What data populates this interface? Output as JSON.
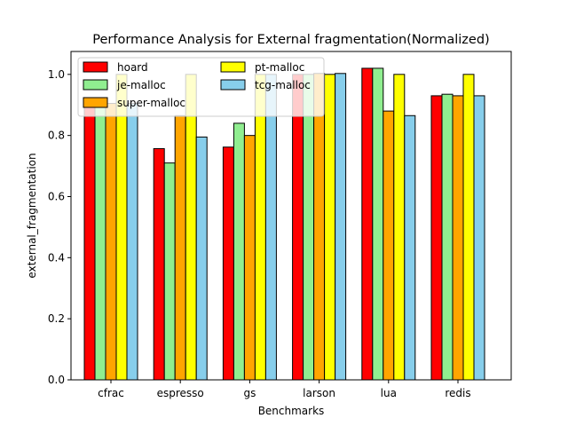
{
  "chart_data": {
    "type": "bar",
    "title": "Performance Analysis for External fragmentation(Normalized)",
    "xlabel": "Benchmarks",
    "ylabel": "external_fragmentation",
    "categories": [
      "cfrac",
      "espresso",
      "gs",
      "larson",
      "lua",
      "redis"
    ],
    "ylim": [
      0,
      1.075
    ],
    "yticks": [
      "0.0",
      "0.2",
      "0.4",
      "0.6",
      "0.8",
      "1.0"
    ],
    "legend_position": "upper-left",
    "legend_columns": 2,
    "series": [
      {
        "name": "hoard",
        "color": "#ff0000",
        "values": [
          0.9,
          0.757,
          0.762,
          1.0,
          1.02,
          0.93
        ]
      },
      {
        "name": "je-malloc",
        "color": "#90ee90",
        "values": [
          0.9,
          0.71,
          0.84,
          1.0,
          1.02,
          0.935
        ]
      },
      {
        "name": "super-malloc",
        "color": "#ffa500",
        "values": [
          0.905,
          0.865,
          0.8,
          1.003,
          0.88,
          0.93
        ]
      },
      {
        "name": "pt-malloc",
        "color": "#ffff00",
        "values": [
          1.0,
          1.0,
          1.0,
          1.0,
          1.0,
          1.0
        ]
      },
      {
        "name": "tcg-malloc",
        "color": "#87ceeb",
        "values": [
          0.905,
          0.795,
          1.0,
          1.003,
          0.865,
          0.93
        ]
      }
    ]
  }
}
